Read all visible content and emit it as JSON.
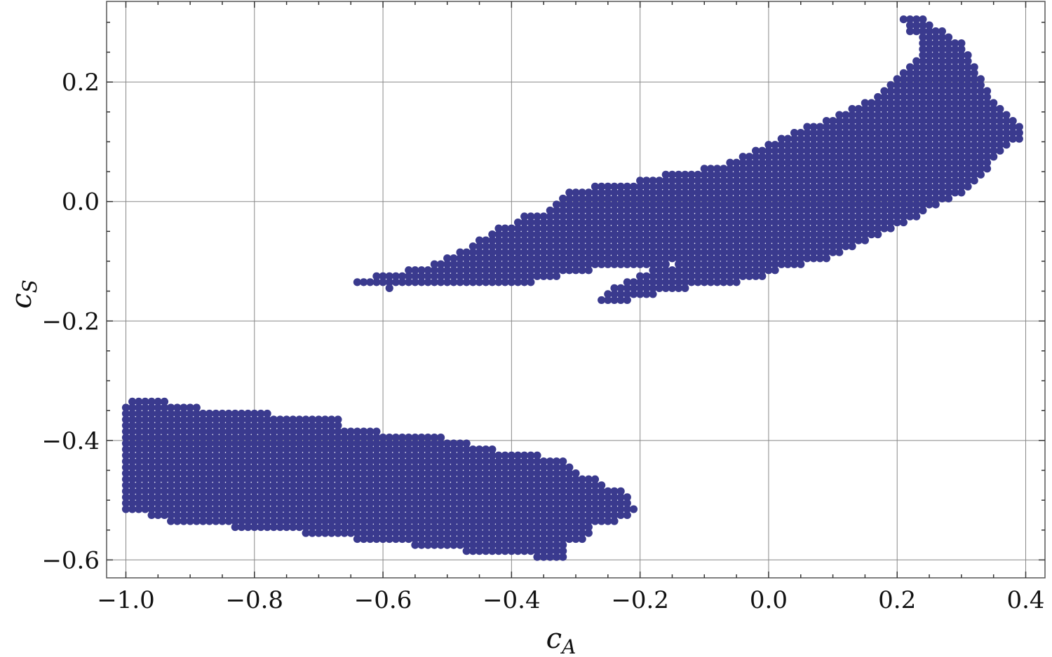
{
  "chart_data": {
    "type": "scatter",
    "xlabel": "c",
    "xlabel_sub": "A",
    "ylabel": "c",
    "ylabel_sub": "S",
    "xlim": [
      -1.03,
      0.43
    ],
    "ylim": [
      -0.63,
      0.335
    ],
    "grid": true,
    "x_ticks": [
      -1.0,
      -0.8,
      -0.6,
      -0.4,
      -0.2,
      0.0,
      0.2,
      0.4
    ],
    "x_tick_labels": [
      "−1.0",
      "−0.8",
      "−0.6",
      "−0.4",
      "−0.2",
      "0.0",
      "0.2",
      "0.4"
    ],
    "y_ticks": [
      0.2,
      0.0,
      -0.2,
      -0.4,
      -0.6
    ],
    "y_tick_labels": [
      "0.2",
      "0.0",
      "−0.2",
      "−0.4",
      "−0.6"
    ],
    "marker_color": "#3a3a8e",
    "grid_step": {
      "dx": 0.01,
      "dy": 0.01
    },
    "regions": [
      {
        "name": "lower region",
        "rows": [
          [
            -0.335,
            -0.99,
            -0.935
          ],
          [
            -0.345,
            -1.0,
            -0.885
          ],
          [
            -0.355,
            -1.0,
            -0.775
          ],
          [
            -0.365,
            -1.0,
            -0.665
          ],
          [
            -0.375,
            -1.0,
            -0.665
          ],
          [
            -0.385,
            -1.0,
            -0.615
          ],
          [
            -0.395,
            -1.0,
            -0.515
          ],
          [
            -0.405,
            -1.0,
            -0.465
          ],
          [
            -0.415,
            -1.0,
            -0.425
          ],
          [
            -0.425,
            -1.0,
            -0.365
          ],
          [
            -0.435,
            -1.0,
            -0.325
          ],
          [
            -0.445,
            -1.0,
            -0.315
          ],
          [
            -0.455,
            -1.0,
            -0.305
          ],
          [
            -0.465,
            -1.0,
            -0.275
          ],
          [
            -0.475,
            -1.0,
            -0.265
          ],
          [
            -0.485,
            -1.0,
            -0.235
          ],
          [
            -0.495,
            -1.0,
            -0.225
          ],
          [
            -0.505,
            -1.0,
            -0.225
          ],
          [
            -0.515,
            -1.0,
            -0.215
          ],
          [
            -0.525,
            -0.96,
            -0.225
          ],
          [
            -0.535,
            -0.93,
            -0.245
          ],
          [
            -0.545,
            -0.83,
            -0.275
          ],
          [
            -0.555,
            -0.72,
            -0.285
          ],
          [
            -0.565,
            -0.64,
            -0.295
          ],
          [
            -0.575,
            -0.55,
            -0.325
          ],
          [
            -0.585,
            -0.47,
            -0.315
          ],
          [
            -0.595,
            -0.36,
            -0.315
          ]
        ]
      },
      {
        "name": "upper region",
        "rows": [
          [
            0.305,
            0.21,
            0.24
          ],
          [
            0.295,
            0.22,
            0.25
          ],
          [
            0.285,
            0.22,
            0.27
          ],
          [
            0.275,
            0.24,
            0.28
          ],
          [
            0.265,
            0.24,
            0.3
          ],
          [
            0.255,
            0.24,
            0.3
          ],
          [
            0.245,
            0.24,
            0.31
          ],
          [
            0.235,
            0.23,
            0.31
          ],
          [
            0.225,
            0.22,
            0.32
          ],
          [
            0.215,
            0.21,
            0.32
          ],
          [
            0.205,
            0.2,
            0.33
          ],
          [
            0.195,
            0.19,
            0.33
          ],
          [
            0.185,
            0.18,
            0.34
          ],
          [
            0.175,
            0.17,
            0.34
          ],
          [
            0.165,
            0.15,
            0.35
          ],
          [
            0.155,
            0.13,
            0.36
          ],
          [
            0.145,
            0.11,
            0.37
          ],
          [
            0.135,
            0.09,
            0.38
          ],
          [
            0.125,
            0.06,
            0.385
          ],
          [
            0.115,
            0.04,
            0.385
          ],
          [
            0.105,
            0.02,
            0.385
          ],
          [
            0.095,
            0.0,
            0.37
          ],
          [
            0.085,
            -0.02,
            0.36
          ],
          [
            0.075,
            -0.04,
            0.35
          ],
          [
            0.065,
            -0.06,
            0.34
          ],
          [
            0.055,
            -0.1,
            0.34
          ],
          [
            0.045,
            -0.16,
            0.33
          ],
          [
            0.035,
            -0.2,
            0.32
          ],
          [
            0.025,
            -0.27,
            0.31
          ],
          [
            0.015,
            -0.31,
            0.3
          ],
          [
            0.005,
            -0.32,
            0.28
          ],
          [
            -0.005,
            -0.33,
            0.26
          ],
          [
            -0.015,
            -0.34,
            0.24
          ],
          [
            -0.025,
            -0.38,
            0.23
          ],
          [
            -0.035,
            -0.39,
            0.21
          ],
          [
            -0.045,
            -0.42,
            0.19
          ],
          [
            -0.055,
            -0.43,
            0.17
          ],
          [
            -0.065,
            -0.45,
            0.15
          ],
          [
            -0.075,
            -0.46,
            0.13
          ],
          [
            -0.085,
            -0.48,
            0.11
          ],
          [
            -0.095,
            -0.5,
            0.09
          ]
        ]
      },
      {
        "name": "upper-left tail",
        "rows": [
          [
            -0.105,
            -0.52,
            -0.16
          ],
          [
            -0.115,
            -0.56,
            -0.28
          ],
          [
            -0.125,
            -0.61,
            -0.33
          ],
          [
            -0.135,
            -0.64,
            -0.37
          ],
          [
            -0.145,
            -0.59,
            -0.59
          ]
        ]
      },
      {
        "name": "upper-right tail",
        "rows": [
          [
            -0.105,
            -0.14,
            0.05
          ],
          [
            -0.115,
            -0.18,
            0.01
          ],
          [
            -0.125,
            -0.2,
            -0.01
          ],
          [
            -0.135,
            -0.22,
            -0.05
          ],
          [
            -0.145,
            -0.24,
            -0.13
          ],
          [
            -0.155,
            -0.25,
            -0.18
          ],
          [
            -0.165,
            -0.26,
            -0.22
          ]
        ]
      }
    ]
  }
}
